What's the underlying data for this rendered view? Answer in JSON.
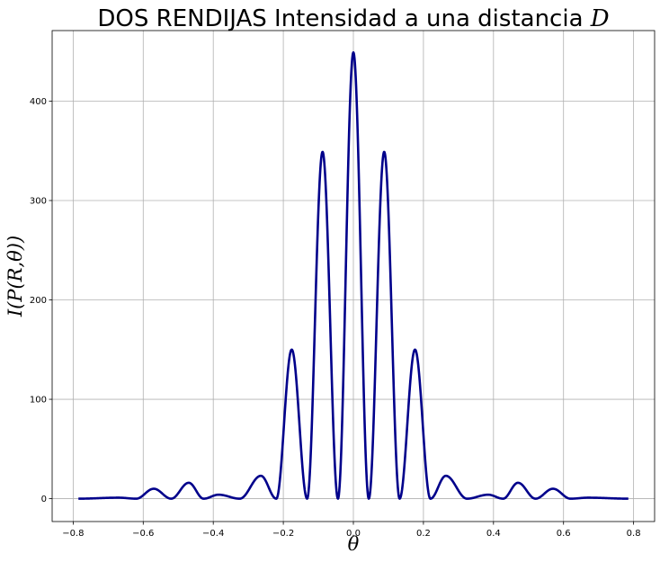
{
  "chart_data": {
    "type": "line",
    "title": "DOS RENDIJAS Intensidad a una distancia D",
    "title_parts": {
      "text": "DOS RENDIJAS Intensidad a una distancia ",
      "italic": "D"
    },
    "xlabel": "θ",
    "ylabel": "I(P(R,θ))",
    "xlim": [
      -0.86,
      0.86
    ],
    "ylim": [
      -23,
      471
    ],
    "xticks": [
      -0.8,
      -0.6,
      -0.4,
      -0.2,
      0.0,
      0.2,
      0.4,
      0.6,
      0.8
    ],
    "xtick_labels": [
      "−0.8",
      "−0.6",
      "−0.4",
      "−0.2",
      "0.0",
      "0.2",
      "0.4",
      "0.6",
      "0.8"
    ],
    "yticks": [
      0,
      100,
      200,
      300,
      400
    ],
    "ytick_labels": [
      "0",
      "100",
      "200",
      "300",
      "400"
    ],
    "grid": true,
    "series": [
      {
        "color": "#00008b",
        "x_range": [
          -0.785,
          0.785
        ],
        "peaks": [
          {
            "x": 0.0,
            "y": 449
          },
          {
            "x": 0.088,
            "y": 349
          },
          {
            "x": 0.176,
            "y": 150
          },
          {
            "x": 0.264,
            "y": 23
          },
          {
            "x": 0.385,
            "y": 4
          },
          {
            "x": 0.47,
            "y": 16
          },
          {
            "x": 0.57,
            "y": 10
          },
          {
            "x": 0.67,
            "y": 1
          }
        ]
      }
    ]
  }
}
